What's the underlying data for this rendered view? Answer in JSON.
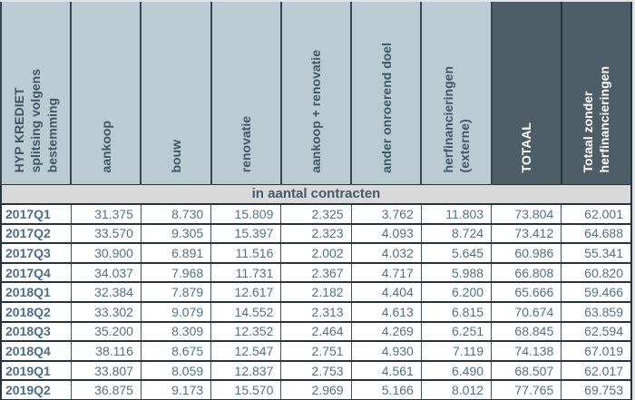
{
  "table": {
    "corner_label": "HYP KREDIET\nsplitsing volgens\nbestemming",
    "columns": [
      "aankoop",
      "bouw",
      "renovatie",
      "aankoop + renovatie",
      "ander onroerend doel",
      "herfinancieringen\n(externe)",
      "TOTAAL",
      "Totaal zonder\nherfinancieringen"
    ],
    "section_label": "in aantal contracten",
    "rows": [
      {
        "label": "2017Q1",
        "values": [
          "31.375",
          "8.730",
          "15.809",
          "2.325",
          "3.762",
          "11.803",
          "73.804",
          "62.001"
        ]
      },
      {
        "label": "2017Q2",
        "values": [
          "33.570",
          "9.305",
          "15.397",
          "2.323",
          "4.093",
          "8.724",
          "73.412",
          "64.688"
        ]
      },
      {
        "label": "2017Q3",
        "values": [
          "30.900",
          "6.891",
          "11.516",
          "2.002",
          "4.032",
          "5.645",
          "60.986",
          "55.341"
        ]
      },
      {
        "label": "2017Q4",
        "values": [
          "34.037",
          "7.968",
          "11.731",
          "2.367",
          "4.717",
          "5.988",
          "66.808",
          "60.820"
        ]
      },
      {
        "label": "2018Q1",
        "values": [
          "32.384",
          "7.879",
          "12.617",
          "2.182",
          "4.404",
          "6.200",
          "65.666",
          "59.466"
        ]
      },
      {
        "label": "2018Q2",
        "values": [
          "33.302",
          "9.079",
          "14.552",
          "2.313",
          "4.613",
          "6.815",
          "70.674",
          "63.859"
        ]
      },
      {
        "label": "2018Q3",
        "values": [
          "35.200",
          "8.309",
          "12.352",
          "2.464",
          "4.269",
          "6.251",
          "68.845",
          "62.594"
        ]
      },
      {
        "label": "2018Q4",
        "values": [
          "38.116",
          "8.675",
          "12.547",
          "2.751",
          "4.930",
          "7.119",
          "74.138",
          "67.019"
        ]
      },
      {
        "label": "2019Q1",
        "values": [
          "33.807",
          "8.059",
          "12.837",
          "2.753",
          "4.561",
          "6.490",
          "68.507",
          "62.017"
        ]
      },
      {
        "label": "2019Q2",
        "values": [
          "36.875",
          "9.173",
          "15.570",
          "2.969",
          "5.166",
          "8.012",
          "77.765",
          "69.753"
        ]
      }
    ]
  },
  "colors": {
    "header_bg": "#b9ccd3",
    "header_dark_bg": "#4e5e68",
    "band_bg": "#d9d9d9",
    "data_text": "#4e7289",
    "header_text": "#3f5665",
    "border_dark": "#26333c",
    "page_bg": "#e3e3e3"
  },
  "chart_data": {
    "type": "table",
    "title": "HYP KREDIET splitsing volgens bestemming",
    "unit_label": "in aantal contracten",
    "categories": [
      "2017Q1",
      "2017Q2",
      "2017Q3",
      "2017Q4",
      "2018Q1",
      "2018Q2",
      "2018Q3",
      "2018Q4",
      "2019Q1",
      "2019Q2"
    ],
    "series": [
      {
        "name": "aankoop",
        "values": [
          31375,
          33570,
          30900,
          34037,
          32384,
          33302,
          35200,
          38116,
          33807,
          36875
        ]
      },
      {
        "name": "bouw",
        "values": [
          8730,
          9305,
          6891,
          7968,
          7879,
          9079,
          8309,
          8675,
          8059,
          9173
        ]
      },
      {
        "name": "renovatie",
        "values": [
          15809,
          15397,
          11516,
          11731,
          12617,
          14552,
          12352,
          12547,
          12837,
          15570
        ]
      },
      {
        "name": "aankoop + renovatie",
        "values": [
          2325,
          2323,
          2002,
          2367,
          2182,
          2313,
          2464,
          2751,
          2753,
          2969
        ]
      },
      {
        "name": "ander onroerend doel",
        "values": [
          3762,
          4093,
          4032,
          4717,
          4404,
          4613,
          4269,
          4930,
          4561,
          5166
        ]
      },
      {
        "name": "herfinancieringen (externe)",
        "values": [
          11803,
          8724,
          5645,
          5988,
          6200,
          6815,
          6251,
          7119,
          6490,
          8012
        ]
      },
      {
        "name": "TOTAAL",
        "values": [
          73804,
          73412,
          60986,
          66808,
          65666,
          70674,
          68845,
          74138,
          68507,
          77765
        ]
      },
      {
        "name": "Totaal zonder herfinancieringen",
        "values": [
          62001,
          64688,
          55341,
          60820,
          59466,
          63859,
          62594,
          67019,
          62017,
          69753
        ]
      }
    ]
  }
}
